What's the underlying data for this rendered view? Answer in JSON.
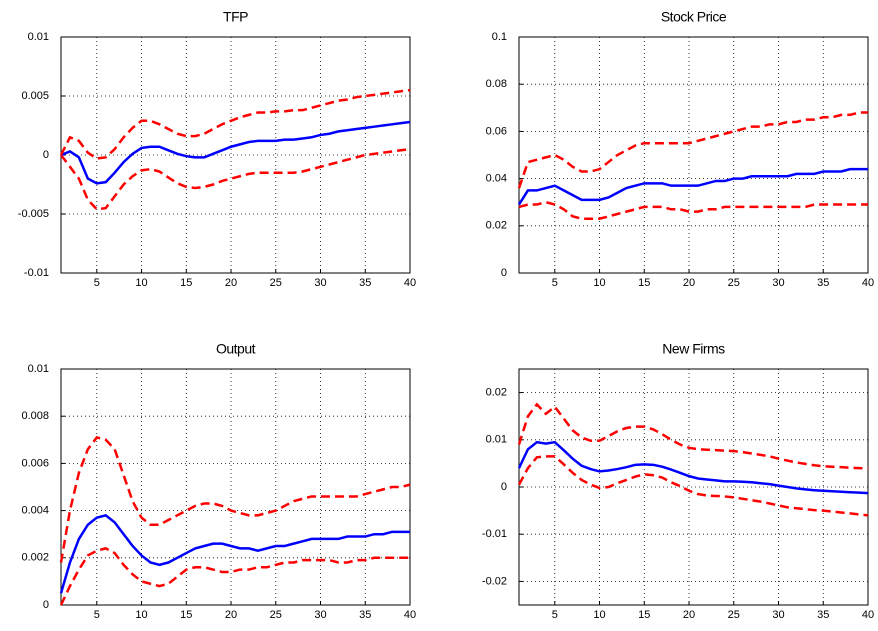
{
  "chart_data": [
    {
      "type": "line",
      "title": "TFP",
      "x": [
        1,
        2,
        3,
        4,
        5,
        6,
        7,
        8,
        9,
        10,
        11,
        12,
        13,
        14,
        15,
        16,
        17,
        18,
        19,
        20,
        21,
        22,
        23,
        24,
        25,
        26,
        27,
        28,
        29,
        30,
        31,
        32,
        33,
        34,
        35,
        36,
        37,
        38,
        39,
        40
      ],
      "xlim": [
        1,
        40
      ],
      "xticks": [
        5,
        10,
        15,
        20,
        25,
        30,
        35,
        40
      ],
      "ylim": [
        -0.01,
        0.01
      ],
      "yticks": [
        -0.01,
        -0.005,
        0,
        0.005,
        0.01
      ],
      "grid": true,
      "series": [
        {
          "color": "#ff0000",
          "linestyle": "dashed",
          "values": [
            0,
            -0.001,
            -0.002,
            -0.0038,
            -0.0046,
            -0.0045,
            -0.0035,
            -0.0025,
            -0.0018,
            -0.0013,
            -0.0012,
            -0.0014,
            -0.0019,
            -0.0024,
            -0.0027,
            -0.0028,
            -0.0027,
            -0.0025,
            -0.0022,
            -0.002,
            -0.0018,
            -0.0016,
            -0.0015,
            -0.0015,
            -0.0015,
            -0.0015,
            -0.0015,
            -0.0014,
            -0.0012,
            -0.001,
            -0.0008,
            -0.0006,
            -0.0004,
            -0.0002,
            0,
            0.0001,
            0.0002,
            0.0003,
            0.0004,
            0.0005
          ]
        },
        {
          "color": "#0000ff",
          "linestyle": "solid",
          "values": [
            0,
            0.0003,
            -0.0002,
            -0.002,
            -0.0024,
            -0.0023,
            -0.0015,
            -0.0006,
            0.0001,
            0.0006,
            0.0007,
            0.0007,
            0.0004,
            0.0001,
            -0.0001,
            -0.0002,
            -0.0002,
            0.0001,
            0.0004,
            0.0007,
            0.0009,
            0.0011,
            0.0012,
            0.0012,
            0.0012,
            0.0013,
            0.0013,
            0.0014,
            0.0015,
            0.0017,
            0.0018,
            0.002,
            0.0021,
            0.0022,
            0.0023,
            0.0024,
            0.0025,
            0.0026,
            0.0027,
            0.0028
          ]
        },
        {
          "color": "#ff0000",
          "linestyle": "dashed",
          "values": [
            0,
            0.0015,
            0.0012,
            0.0002,
            -0.0003,
            -0.0002,
            0.0005,
            0.0015,
            0.0023,
            0.0029,
            0.0029,
            0.0026,
            0.0022,
            0.0018,
            0.0016,
            0.0016,
            0.0018,
            0.0022,
            0.0026,
            0.0029,
            0.0032,
            0.0034,
            0.0036,
            0.0036,
            0.0037,
            0.0037,
            0.0038,
            0.0038,
            0.004,
            0.0042,
            0.0044,
            0.0046,
            0.0047,
            0.0049,
            0.005,
            0.0051,
            0.0052,
            0.0053,
            0.0054,
            0.0055
          ]
        }
      ]
    },
    {
      "type": "line",
      "title": "Stock Price",
      "x": [
        1,
        2,
        3,
        4,
        5,
        6,
        7,
        8,
        9,
        10,
        11,
        12,
        13,
        14,
        15,
        16,
        17,
        18,
        19,
        20,
        21,
        22,
        23,
        24,
        25,
        26,
        27,
        28,
        29,
        30,
        31,
        32,
        33,
        34,
        35,
        36,
        37,
        38,
        39,
        40
      ],
      "xlim": [
        1,
        40
      ],
      "xticks": [
        5,
        10,
        15,
        20,
        25,
        30,
        35,
        40
      ],
      "ylim": [
        0,
        0.1
      ],
      "yticks": [
        0,
        0.02,
        0.04,
        0.06,
        0.08,
        0.1
      ],
      "grid": true,
      "series": [
        {
          "color": "#ff0000",
          "linestyle": "dashed",
          "values": [
            0.028,
            0.029,
            0.029,
            0.03,
            0.029,
            0.027,
            0.024,
            0.023,
            0.023,
            0.023,
            0.024,
            0.025,
            0.026,
            0.027,
            0.028,
            0.028,
            0.028,
            0.027,
            0.027,
            0.026,
            0.026,
            0.027,
            0.027,
            0.028,
            0.028,
            0.028,
            0.028,
            0.028,
            0.028,
            0.028,
            0.028,
            0.028,
            0.028,
            0.029,
            0.029,
            0.029,
            0.029,
            0.029,
            0.029,
            0.029
          ]
        },
        {
          "color": "#0000ff",
          "linestyle": "solid",
          "values": [
            0.029,
            0.035,
            0.035,
            0.036,
            0.037,
            0.035,
            0.033,
            0.031,
            0.031,
            0.031,
            0.032,
            0.034,
            0.036,
            0.037,
            0.038,
            0.038,
            0.038,
            0.037,
            0.037,
            0.037,
            0.037,
            0.038,
            0.039,
            0.039,
            0.04,
            0.04,
            0.041,
            0.041,
            0.041,
            0.041,
            0.041,
            0.042,
            0.042,
            0.042,
            0.043,
            0.043,
            0.043,
            0.044,
            0.044,
            0.044
          ]
        },
        {
          "color": "#ff0000",
          "linestyle": "dashed",
          "values": [
            0.036,
            0.047,
            0.048,
            0.049,
            0.05,
            0.048,
            0.045,
            0.043,
            0.043,
            0.044,
            0.047,
            0.05,
            0.052,
            0.054,
            0.055,
            0.055,
            0.055,
            0.055,
            0.055,
            0.055,
            0.056,
            0.057,
            0.058,
            0.059,
            0.06,
            0.061,
            0.062,
            0.062,
            0.063,
            0.063,
            0.064,
            0.064,
            0.065,
            0.065,
            0.066,
            0.066,
            0.067,
            0.067,
            0.068,
            0.068
          ]
        }
      ]
    },
    {
      "type": "line",
      "title": "Output",
      "x": [
        1,
        2,
        3,
        4,
        5,
        6,
        7,
        8,
        9,
        10,
        11,
        12,
        13,
        14,
        15,
        16,
        17,
        18,
        19,
        20,
        21,
        22,
        23,
        24,
        25,
        26,
        27,
        28,
        29,
        30,
        31,
        32,
        33,
        34,
        35,
        36,
        37,
        38,
        39,
        40
      ],
      "xlim": [
        1,
        40
      ],
      "xticks": [
        5,
        10,
        15,
        20,
        25,
        30,
        35,
        40
      ],
      "ylim": [
        0,
        0.01
      ],
      "yticks": [
        0,
        0.002,
        0.004,
        0.006,
        0.008,
        0.01
      ],
      "grid": true,
      "series": [
        {
          "color": "#ff0000",
          "linestyle": "dashed",
          "values": [
            0,
            0.0008,
            0.0015,
            0.0021,
            0.0023,
            0.0024,
            0.0022,
            0.0017,
            0.0013,
            0.001,
            0.0009,
            0.0008,
            0.0009,
            0.0012,
            0.0015,
            0.0016,
            0.0016,
            0.0015,
            0.0014,
            0.0014,
            0.0015,
            0.0015,
            0.0016,
            0.0016,
            0.0017,
            0.0018,
            0.0018,
            0.0019,
            0.0019,
            0.0019,
            0.0019,
            0.0018,
            0.0018,
            0.0019,
            0.0019,
            0.002,
            0.002,
            0.002,
            0.002,
            0.002
          ]
        },
        {
          "color": "#0000ff",
          "linestyle": "solid",
          "values": [
            0.0005,
            0.0018,
            0.0028,
            0.0034,
            0.0037,
            0.0038,
            0.0035,
            0.003,
            0.0025,
            0.0021,
            0.0018,
            0.0017,
            0.0018,
            0.002,
            0.0022,
            0.0024,
            0.0025,
            0.0026,
            0.0026,
            0.0025,
            0.0024,
            0.0024,
            0.0023,
            0.0024,
            0.0025,
            0.0025,
            0.0026,
            0.0027,
            0.0028,
            0.0028,
            0.0028,
            0.0028,
            0.0029,
            0.0029,
            0.0029,
            0.003,
            0.003,
            0.0031,
            0.0031,
            0.0031
          ]
        },
        {
          "color": "#ff0000",
          "linestyle": "dashed",
          "values": [
            0.0018,
            0.004,
            0.0056,
            0.0066,
            0.0071,
            0.007,
            0.0066,
            0.0055,
            0.0044,
            0.0037,
            0.0034,
            0.0034,
            0.0036,
            0.0038,
            0.004,
            0.0042,
            0.0043,
            0.0043,
            0.0042,
            0.004,
            0.0039,
            0.0038,
            0.0038,
            0.0039,
            0.004,
            0.0042,
            0.0044,
            0.0045,
            0.0046,
            0.0046,
            0.0046,
            0.0046,
            0.0046,
            0.0046,
            0.0047,
            0.0048,
            0.0049,
            0.005,
            0.005,
            0.0051
          ]
        }
      ]
    },
    {
      "type": "line",
      "title": "New Firms",
      "x": [
        1,
        2,
        3,
        4,
        5,
        6,
        7,
        8,
        9,
        10,
        11,
        12,
        13,
        14,
        15,
        16,
        17,
        18,
        19,
        20,
        21,
        22,
        23,
        24,
        25,
        26,
        27,
        28,
        29,
        30,
        31,
        32,
        33,
        34,
        35,
        36,
        37,
        38,
        39,
        40
      ],
      "xlim": [
        1,
        40
      ],
      "xticks": [
        5,
        10,
        15,
        20,
        25,
        30,
        35,
        40
      ],
      "ylim": [
        -0.025,
        0.025
      ],
      "yticks": [
        -0.02,
        -0.01,
        0,
        0.01,
        0.02
      ],
      "grid": true,
      "series": [
        {
          "color": "#ff0000",
          "linestyle": "dashed",
          "values": [
            0.0005,
            0.004,
            0.0063,
            0.0065,
            0.0065,
            0.0048,
            0.003,
            0.0015,
            0.0005,
            -0.0002,
            0,
            0.0008,
            0.0015,
            0.0022,
            0.0027,
            0.0025,
            0.002,
            0.001,
            0.0002,
            -0.0008,
            -0.0015,
            -0.0018,
            -0.0019,
            -0.002,
            -0.0022,
            -0.0025,
            -0.0028,
            -0.0031,
            -0.0035,
            -0.0039,
            -0.0043,
            -0.0045,
            -0.0047,
            -0.0049,
            -0.005,
            -0.0052,
            -0.0054,
            -0.0056,
            -0.0058,
            -0.006
          ]
        },
        {
          "color": "#0000ff",
          "linestyle": "solid",
          "values": [
            0.004,
            0.008,
            0.0095,
            0.0092,
            0.0095,
            0.0078,
            0.006,
            0.0045,
            0.0038,
            0.0033,
            0.0035,
            0.0038,
            0.0042,
            0.0047,
            0.0048,
            0.0047,
            0.0043,
            0.0037,
            0.003,
            0.0023,
            0.0018,
            0.0016,
            0.0014,
            0.0012,
            0.0012,
            0.0011,
            0.001,
            0.0008,
            0.0006,
            0.0003,
            0,
            -0.0003,
            -0.0005,
            -0.0007,
            -0.0008,
            -0.0009,
            -0.001,
            -0.0011,
            -0.0012,
            -0.0013
          ]
        },
        {
          "color": "#ff0000",
          "linestyle": "dashed",
          "values": [
            0.009,
            0.015,
            0.0175,
            0.0155,
            0.017,
            0.0145,
            0.012,
            0.0105,
            0.0098,
            0.0098,
            0.0108,
            0.0118,
            0.0125,
            0.0128,
            0.0128,
            0.0122,
            0.0112,
            0.01,
            0.009,
            0.0083,
            0.008,
            0.0079,
            0.0078,
            0.0077,
            0.0076,
            0.0074,
            0.0071,
            0.0068,
            0.0065,
            0.006,
            0.0056,
            0.0052,
            0.0049,
            0.0046,
            0.0044,
            0.0043,
            0.0042,
            0.0041,
            0.004,
            0.0039
          ]
        }
      ]
    }
  ]
}
